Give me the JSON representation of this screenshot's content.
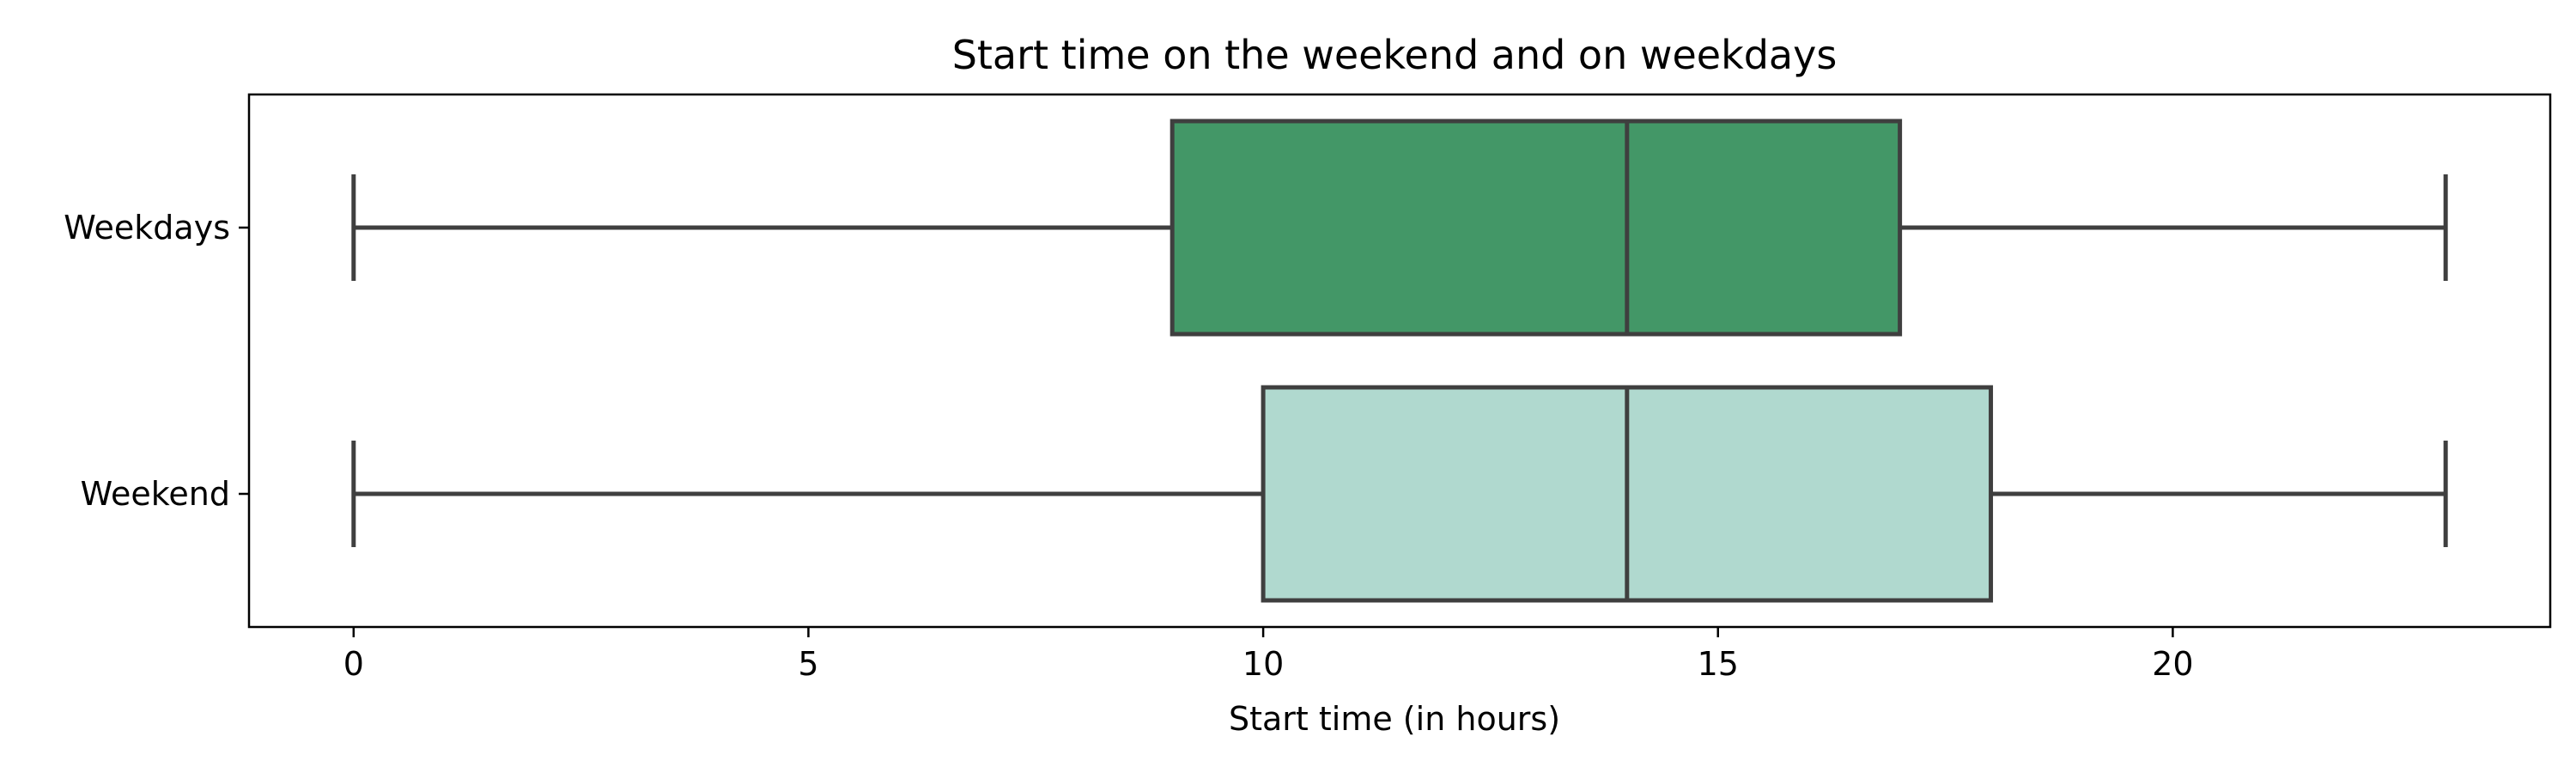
{
  "chart_data": {
    "type": "box",
    "orientation": "horizontal",
    "title": "Start time on the weekend and on weekdays",
    "xlabel": "Start time (in hours)",
    "ylabel": "",
    "xlim": [
      -1.15,
      24.15
    ],
    "xticks": [
      0,
      5,
      10,
      15,
      20
    ],
    "grid": false,
    "series": [
      {
        "name": "Weekdays",
        "min": 0,
        "q1": 9,
        "median": 14,
        "q3": 17,
        "max": 23,
        "color": "#439767"
      },
      {
        "name": "Weekend",
        "min": 0,
        "q1": 10,
        "median": 14,
        "q3": 18,
        "max": 23,
        "color": "#b0d9cf"
      }
    ],
    "line_color": "#3f3f3f"
  }
}
